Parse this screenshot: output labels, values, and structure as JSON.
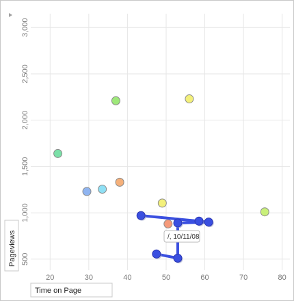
{
  "chart_data": {
    "type": "scatter",
    "title": "",
    "xlabel": "Time on Page",
    "ylabel": "Pageviews",
    "xlim": [
      15,
      82
    ],
    "ylim": [
      380,
      3150
    ],
    "x_ticks": [
      20,
      30,
      40,
      50,
      60,
      70,
      80
    ],
    "y_ticks": [
      500,
      1000,
      1500,
      2000,
      2500,
      3000
    ],
    "x_tick_labels": [
      "20",
      "30",
      "40",
      "50",
      "60",
      "70",
      "80"
    ],
    "y_tick_labels": [
      "500",
      "1,000",
      "1,500",
      "2,000",
      "2,500",
      "3,000"
    ],
    "grid": true,
    "points": [
      {
        "x": 22,
        "y": 1640,
        "color": "#7be0a8"
      },
      {
        "x": 29.5,
        "y": 1230,
        "color": "#8fb4f0"
      },
      {
        "x": 33.5,
        "y": 1255,
        "color": "#8fe0f5"
      },
      {
        "x": 37,
        "y": 2210,
        "color": "#9ee87a"
      },
      {
        "x": 38,
        "y": 1330,
        "color": "#f5b07a"
      },
      {
        "x": 49,
        "y": 1105,
        "color": "#f3f07a"
      },
      {
        "x": 50.5,
        "y": 880,
        "color": "#f59a7a"
      },
      {
        "x": 56,
        "y": 2230,
        "color": "#f3f07a"
      },
      {
        "x": 75.5,
        "y": 1010,
        "color": "#c9f07a"
      }
    ],
    "trail": {
      "name": "/",
      "color": "#3a4fe0",
      "points": [
        {
          "x": 43.5,
          "y": 970
        },
        {
          "x": 58.5,
          "y": 910
        },
        {
          "x": 61,
          "y": 900
        },
        {
          "x": 53,
          "y": 890
        },
        {
          "x": 53,
          "y": 510
        },
        {
          "x": 47.5,
          "y": 555
        }
      ]
    },
    "tooltip": {
      "text": "/, 10/11/08"
    }
  },
  "colors": {
    "grid": "#e6e6e6",
    "frame": "#c8c8c8"
  },
  "icons": {
    "collapse": "triangle-right-icon"
  }
}
